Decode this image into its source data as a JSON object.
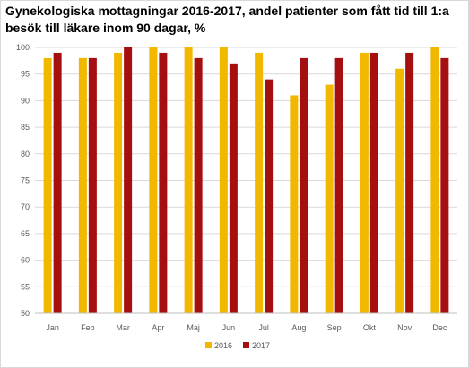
{
  "chart_data": {
    "type": "bar",
    "title": "Gynekologiska mottagningar 2016-2017, andel patienter som fått tid till 1:a besök till läkare inom 90 dagar, %",
    "xlabel": "",
    "ylabel": "",
    "ylim": [
      50,
      100
    ],
    "yticks": [
      50,
      55,
      60,
      65,
      70,
      75,
      80,
      85,
      90,
      95,
      100
    ],
    "grid": true,
    "legend_position": "bottom",
    "categories": [
      "Jan",
      "Feb",
      "Mar",
      "Apr",
      "Maj",
      "Jun",
      "Jul",
      "Aug",
      "Sep",
      "Okt",
      "Nov",
      "Dec"
    ],
    "series": [
      {
        "name": "2016",
        "color": "#f2b800",
        "values": [
          98,
          98,
          99,
          100,
          100,
          100,
          99,
          91,
          93,
          99,
          96,
          100
        ]
      },
      {
        "name": "2017",
        "color": "#a50f0f",
        "values": [
          99,
          98,
          100,
          99,
          98,
          97,
          94,
          98,
          98,
          99,
          99,
          98
        ]
      }
    ]
  }
}
